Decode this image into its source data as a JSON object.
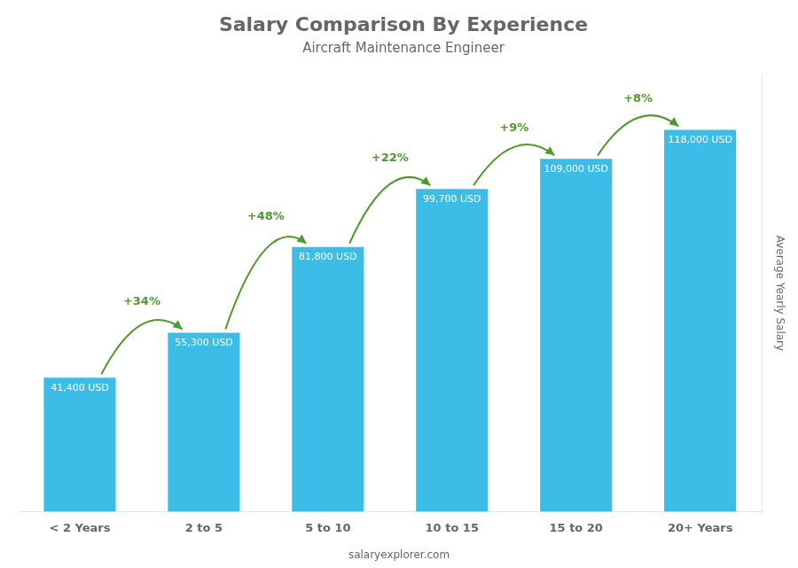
{
  "chart_data": {
    "type": "bar",
    "title": "Salary Comparison By Experience",
    "subtitle": "Aircraft Maintenance Engineer",
    "categories": [
      "< 2 Years",
      "2 to 5",
      "5 to 10",
      "10 to 15",
      "15 to 20",
      "20+ Years"
    ],
    "values": [
      41400,
      55300,
      81800,
      99700,
      109000,
      118000
    ],
    "value_labels": [
      "41,400 USD",
      "55,300 USD",
      "81,800 USD",
      "99,700 USD",
      "109,000 USD",
      "118,000 USD"
    ],
    "data_labels": true,
    "color": "#3BBDE8",
    "ylabel": "Average Yearly Salary",
    "ylim": [
      0,
      135000
    ],
    "grid": false,
    "tick_labels": "x",
    "annotations": [
      "+34%",
      "+48%",
      "+22%",
      "+9%",
      "+8%"
    ],
    "footer": "salaryexplorer.com"
  }
}
